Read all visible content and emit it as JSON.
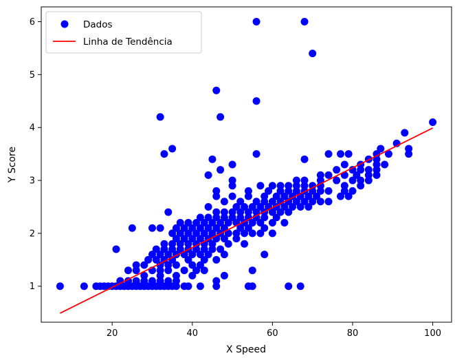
{
  "chart_data": {
    "type": "scatter",
    "title": "",
    "xlabel": "X Speed",
    "ylabel": "Y Score",
    "xlim": [
      2.3,
      104.7
    ],
    "ylim": [
      0.32,
      6.28
    ],
    "xticks": [
      20,
      40,
      60,
      80,
      100
    ],
    "yticks": [
      1,
      2,
      3,
      4,
      5,
      6
    ],
    "grid": false,
    "legend": {
      "position": "upper-left",
      "entries": [
        "Dados",
        "Linha de Tendência"
      ]
    },
    "colors": {
      "points": "#0000ff",
      "trend": "#ff0000"
    },
    "series": [
      {
        "name": "Dados",
        "type": "scatter",
        "points": [
          [
            7,
            1
          ],
          [
            13,
            1
          ],
          [
            16,
            1
          ],
          [
            17,
            1
          ],
          [
            18,
            1
          ],
          [
            19,
            1
          ],
          [
            20,
            1
          ],
          [
            21,
            1
          ],
          [
            22,
            1
          ],
          [
            23,
            1
          ],
          [
            24,
            1
          ],
          [
            25,
            1
          ],
          [
            26,
            1
          ],
          [
            27,
            1
          ],
          [
            28,
            1
          ],
          [
            29,
            1
          ],
          [
            30,
            1
          ],
          [
            31,
            1
          ],
          [
            32,
            1
          ],
          [
            33,
            1
          ],
          [
            34,
            1
          ],
          [
            35,
            1
          ],
          [
            36,
            1
          ],
          [
            38,
            1
          ],
          [
            39,
            1
          ],
          [
            42,
            1
          ],
          [
            46,
            1
          ],
          [
            54,
            1
          ],
          [
            55,
            1
          ],
          [
            64,
            1
          ],
          [
            67,
            1
          ],
          [
            22,
            1.1
          ],
          [
            24,
            1.1
          ],
          [
            26,
            1.1
          ],
          [
            28,
            1.1
          ],
          [
            30,
            1.1
          ],
          [
            32,
            1.1
          ],
          [
            34,
            1.1
          ],
          [
            36,
            1.1
          ],
          [
            46,
            1.1
          ],
          [
            28,
            1.2
          ],
          [
            32,
            1.2
          ],
          [
            36,
            1.2
          ],
          [
            40,
            1.2
          ],
          [
            48,
            1.2
          ],
          [
            24,
            1.3
          ],
          [
            26,
            1.3
          ],
          [
            30,
            1.3
          ],
          [
            32,
            1.3
          ],
          [
            34,
            1.3
          ],
          [
            38,
            1.3
          ],
          [
            41,
            1.3
          ],
          [
            43,
            1.3
          ],
          [
            55,
            1.3
          ],
          [
            26,
            1.4
          ],
          [
            28,
            1.4
          ],
          [
            32,
            1.4
          ],
          [
            34,
            1.4
          ],
          [
            36,
            1.4
          ],
          [
            40,
            1.4
          ],
          [
            42,
            1.4
          ],
          [
            29,
            1.5
          ],
          [
            31,
            1.5
          ],
          [
            33,
            1.5
          ],
          [
            35,
            1.5
          ],
          [
            39,
            1.5
          ],
          [
            43,
            1.5
          ],
          [
            46,
            1.5
          ],
          [
            30,
            1.6
          ],
          [
            32,
            1.6
          ],
          [
            34,
            1.6
          ],
          [
            36,
            1.6
          ],
          [
            38,
            1.6
          ],
          [
            40,
            1.6
          ],
          [
            42,
            1.6
          ],
          [
            44,
            1.6
          ],
          [
            48,
            1.6
          ],
          [
            58,
            1.6
          ],
          [
            21,
            1.7
          ],
          [
            31,
            1.7
          ],
          [
            33,
            1.7
          ],
          [
            35,
            1.7
          ],
          [
            37,
            1.7
          ],
          [
            39,
            1.7
          ],
          [
            41,
            1.7
          ],
          [
            43,
            1.7
          ],
          [
            45,
            1.7
          ],
          [
            47,
            1.7
          ],
          [
            33,
            1.8
          ],
          [
            35,
            1.8
          ],
          [
            37,
            1.8
          ],
          [
            39,
            1.8
          ],
          [
            41,
            1.8
          ],
          [
            43,
            1.8
          ],
          [
            45,
            1.8
          ],
          [
            49,
            1.8
          ],
          [
            53,
            1.8
          ],
          [
            36,
            1.9
          ],
          [
            38,
            1.9
          ],
          [
            40,
            1.9
          ],
          [
            42,
            1.9
          ],
          [
            44,
            1.9
          ],
          [
            46,
            1.9
          ],
          [
            48,
            1.9
          ],
          [
            51,
            1.9
          ],
          [
            25,
            2.1
          ],
          [
            30,
            2.1
          ],
          [
            32,
            2.1
          ],
          [
            36,
            2.1
          ],
          [
            38,
            2.1
          ],
          [
            40,
            2.1
          ],
          [
            42,
            2.1
          ],
          [
            44,
            2.1
          ],
          [
            46,
            2.1
          ],
          [
            48,
            2.1
          ],
          [
            52,
            2.1
          ],
          [
            54,
            2.1
          ],
          [
            58,
            2.1
          ],
          [
            35,
            2.0
          ],
          [
            37,
            2.0
          ],
          [
            39,
            2.0
          ],
          [
            41,
            2.0
          ],
          [
            43,
            2.0
          ],
          [
            45,
            2.0
          ],
          [
            47,
            2.0
          ],
          [
            49,
            2.0
          ],
          [
            51,
            2.0
          ],
          [
            53,
            2.0
          ],
          [
            55,
            2.0
          ],
          [
            57,
            2.0
          ],
          [
            60,
            2.0
          ],
          [
            37,
            2.2
          ],
          [
            39,
            2.2
          ],
          [
            41,
            2.2
          ],
          [
            43,
            2.2
          ],
          [
            45,
            2.2
          ],
          [
            47,
            2.2
          ],
          [
            49,
            2.2
          ],
          [
            51,
            2.2
          ],
          [
            53,
            2.2
          ],
          [
            55,
            2.2
          ],
          [
            57,
            2.2
          ],
          [
            60,
            2.2
          ],
          [
            63,
            2.2
          ],
          [
            42,
            2.3
          ],
          [
            44,
            2.3
          ],
          [
            46,
            2.3
          ],
          [
            48,
            2.3
          ],
          [
            50,
            2.3
          ],
          [
            52,
            2.3
          ],
          [
            54,
            2.3
          ],
          [
            56,
            2.3
          ],
          [
            58,
            2.3
          ],
          [
            61,
            2.3
          ],
          [
            34,
            2.4
          ],
          [
            46,
            2.4
          ],
          [
            48,
            2.4
          ],
          [
            50,
            2.4
          ],
          [
            52,
            2.4
          ],
          [
            54,
            2.4
          ],
          [
            56,
            2.4
          ],
          [
            58,
            2.4
          ],
          [
            60,
            2.4
          ],
          [
            62,
            2.4
          ],
          [
            64,
            2.4
          ],
          [
            44,
            2.5
          ],
          [
            51,
            2.5
          ],
          [
            53,
            2.5
          ],
          [
            55,
            2.5
          ],
          [
            57,
            2.5
          ],
          [
            59,
            2.5
          ],
          [
            61,
            2.5
          ],
          [
            63,
            2.5
          ],
          [
            65,
            2.5
          ],
          [
            67,
            2.5
          ],
          [
            69,
            2.5
          ],
          [
            48,
            2.6
          ],
          [
            52,
            2.6
          ],
          [
            56,
            2.6
          ],
          [
            58,
            2.6
          ],
          [
            60,
            2.6
          ],
          [
            62,
            2.6
          ],
          [
            64,
            2.6
          ],
          [
            66,
            2.6
          ],
          [
            68,
            2.6
          ],
          [
            70,
            2.6
          ],
          [
            72,
            2.6
          ],
          [
            74,
            2.6
          ],
          [
            46,
            2.7
          ],
          [
            50,
            2.7
          ],
          [
            54,
            2.7
          ],
          [
            58,
            2.7
          ],
          [
            61,
            2.7
          ],
          [
            63,
            2.7
          ],
          [
            65,
            2.7
          ],
          [
            67,
            2.7
          ],
          [
            69,
            2.7
          ],
          [
            71,
            2.7
          ],
          [
            77,
            2.7
          ],
          [
            79,
            2.7
          ],
          [
            46,
            2.8
          ],
          [
            54,
            2.8
          ],
          [
            59,
            2.8
          ],
          [
            62,
            2.8
          ],
          [
            64,
            2.8
          ],
          [
            66,
            2.8
          ],
          [
            68,
            2.8
          ],
          [
            70,
            2.8
          ],
          [
            72,
            2.8
          ],
          [
            74,
            2.8
          ],
          [
            78,
            2.8
          ],
          [
            80,
            2.8
          ],
          [
            50,
            2.9
          ],
          [
            57,
            2.9
          ],
          [
            60,
            2.9
          ],
          [
            62,
            2.9
          ],
          [
            64,
            2.9
          ],
          [
            66,
            2.9
          ],
          [
            68,
            2.9
          ],
          [
            70,
            2.9
          ],
          [
            72,
            2.9
          ],
          [
            78,
            2.9
          ],
          [
            82,
            2.9
          ],
          [
            50,
            3.0
          ],
          [
            66,
            3.0
          ],
          [
            68,
            3.0
          ],
          [
            72,
            3.0
          ],
          [
            76,
            3.0
          ],
          [
            80,
            3.0
          ],
          [
            82,
            3.0
          ],
          [
            84,
            3.0
          ],
          [
            44,
            3.1
          ],
          [
            72,
            3.1
          ],
          [
            74,
            3.1
          ],
          [
            78,
            3.1
          ],
          [
            81,
            3.1
          ],
          [
            84,
            3.1
          ],
          [
            86,
            3.1
          ],
          [
            47,
            3.2
          ],
          [
            76,
            3.2
          ],
          [
            80,
            3.2
          ],
          [
            82,
            3.2
          ],
          [
            84,
            3.2
          ],
          [
            86,
            3.2
          ],
          [
            50,
            3.3
          ],
          [
            78,
            3.3
          ],
          [
            82,
            3.3
          ],
          [
            86,
            3.3
          ],
          [
            88,
            3.3
          ],
          [
            45,
            3.4
          ],
          [
            68,
            3.4
          ],
          [
            84,
            3.4
          ],
          [
            86,
            3.4
          ],
          [
            33,
            3.5
          ],
          [
            56,
            3.5
          ],
          [
            74,
            3.5
          ],
          [
            77,
            3.5
          ],
          [
            79,
            3.5
          ],
          [
            86,
            3.5
          ],
          [
            89,
            3.5
          ],
          [
            94,
            3.5
          ],
          [
            35,
            3.6
          ],
          [
            87,
            3.6
          ],
          [
            94,
            3.6
          ],
          [
            91,
            3.7
          ],
          [
            93,
            3.9
          ],
          [
            100,
            4.1
          ],
          [
            32,
            4.2
          ],
          [
            47,
            4.2
          ],
          [
            56,
            4.5
          ],
          [
            46,
            4.7
          ],
          [
            70,
            5.4
          ],
          [
            56,
            6
          ],
          [
            68,
            6
          ]
        ]
      },
      {
        "name": "Linha de Tendência",
        "type": "line",
        "points": [
          [
            7,
            0.49
          ],
          [
            100,
            3.99
          ]
        ]
      }
    ]
  }
}
